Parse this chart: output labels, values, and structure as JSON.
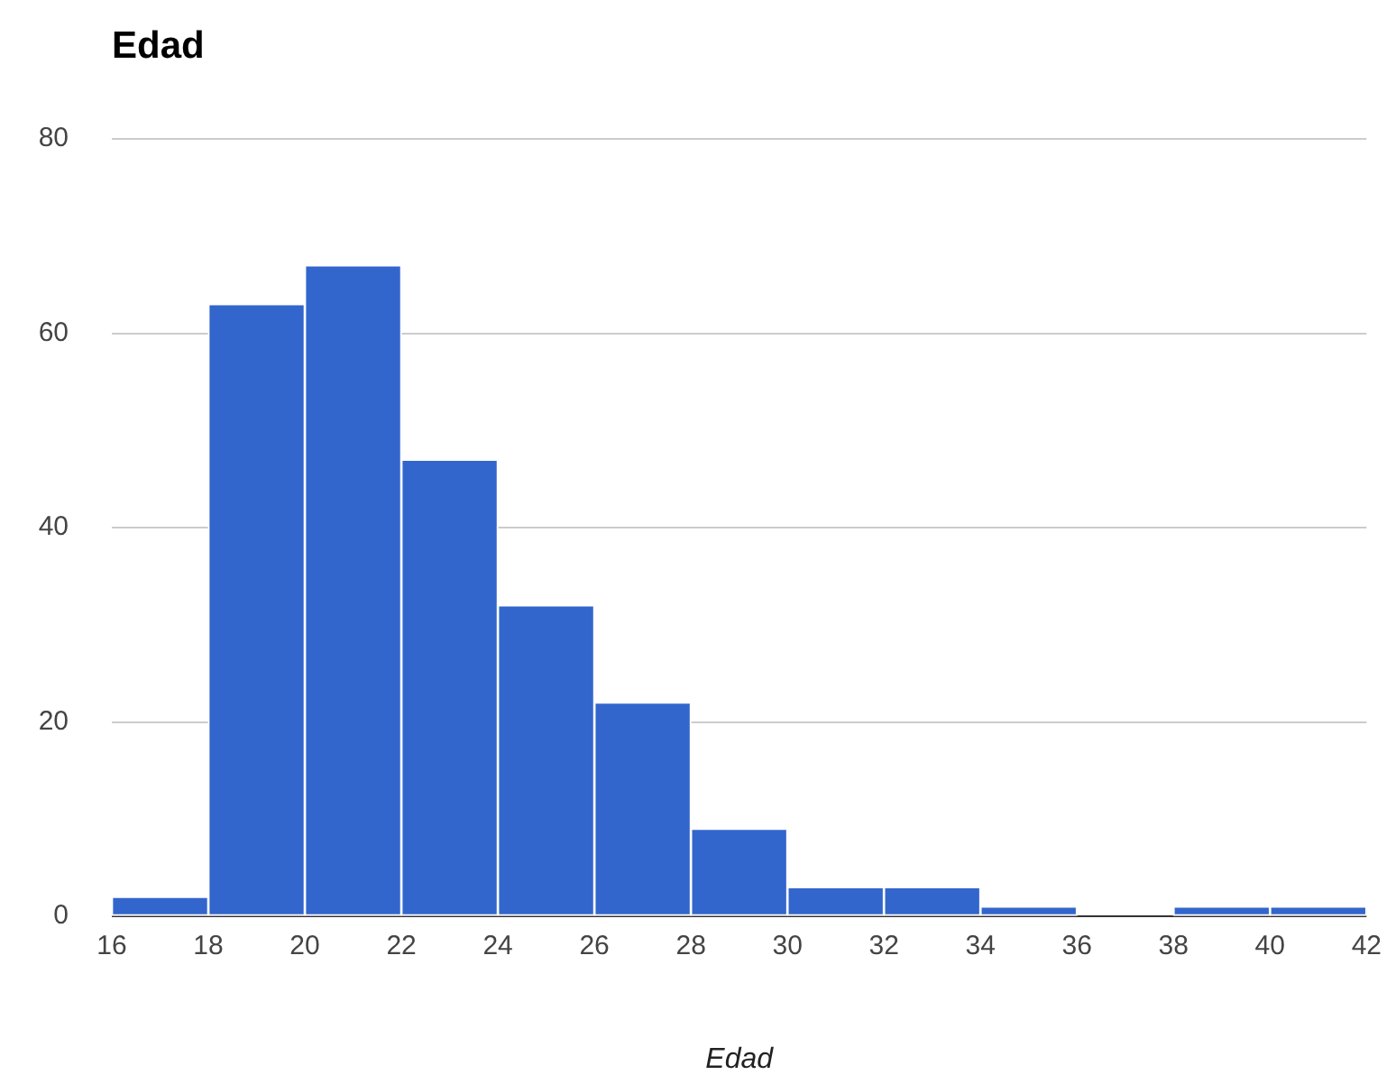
{
  "chart_data": {
    "type": "histogram",
    "title": "Edad",
    "xlabel": "Edad",
    "bins": [
      16,
      18,
      20,
      22,
      24,
      26,
      28,
      30,
      32,
      34,
      36,
      38,
      40,
      42
    ],
    "values": [
      2,
      63,
      67,
      47,
      32,
      22,
      9,
      3,
      3,
      1,
      0,
      1,
      1
    ],
    "color": "#3366cc",
    "xlim": [
      16,
      42
    ],
    "xticks": [
      16,
      18,
      20,
      22,
      24,
      26,
      28,
      30,
      32,
      34,
      36,
      38,
      40,
      42
    ],
    "ylim": [
      0,
      80
    ],
    "yticks": [
      0,
      20,
      40,
      60,
      80
    ],
    "grid": "y",
    "legend": false
  }
}
